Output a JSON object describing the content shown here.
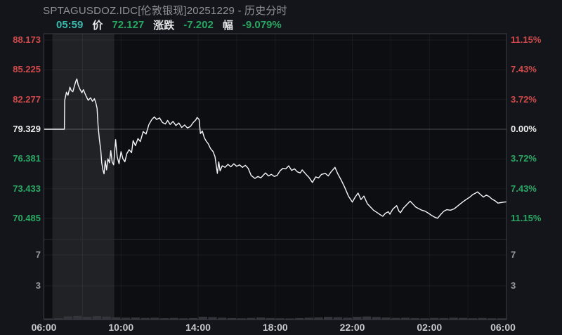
{
  "header": {
    "title": "SPTAGUSDOZ.IDC[伦敦银现]20251229 - 历史分时"
  },
  "quote": {
    "time": "05:59",
    "price_label": "价",
    "price": "72.127",
    "change_label": "涨跌",
    "change": "-7.202",
    "pct_label": "幅",
    "pct": "-9.079%"
  },
  "colors": {
    "background": "#14151a",
    "plot_background": "#0d0e12",
    "highlight_band": "rgba(255,255,255,0.085)",
    "line": "#f4f5f7",
    "up_red": "#d04a4a",
    "down_green": "#2ba864",
    "neutral_white": "#eceded",
    "teal_time": "#3ab9ad"
  },
  "chart_data": {
    "type": "line",
    "title": "SPTAGUSDOZ.IDC[伦敦银现]20251229 - 历史分时",
    "x_unit": "hours_from_06:00",
    "x_range": [
      0,
      24
    ],
    "x_tick_labels": [
      "06:00",
      "10:00",
      "14:00",
      "18:00",
      "22:00",
      "02:00",
      "06:00"
    ],
    "y_left_ticks": [
      88.173,
      85.225,
      82.277,
      79.329,
      76.381,
      73.433,
      70.485
    ],
    "y_left_tick_labels": [
      "88.173",
      "85.225",
      "82.277",
      "79.329",
      "76.381",
      "73.433",
      "70.485"
    ],
    "y_right_tick_labels": [
      "11.15%",
      "7.43%",
      "3.72%",
      "0.00%",
      "3.72%",
      "7.43%",
      "11.15%"
    ],
    "volume_tick_labels": [
      "7",
      "3"
    ],
    "base_price": 79.329,
    "last_price": 72.127,
    "grid": true,
    "highlight_band_hours": [
      0.44,
      3.65
    ],
    "series": [
      {
        "name": "price",
        "points": [
          [
            0,
            79.329
          ],
          [
            0.55,
            79.329
          ],
          [
            1.06,
            79.329
          ],
          [
            1.08,
            82.2
          ],
          [
            1.17,
            83
          ],
          [
            1.25,
            82.7
          ],
          [
            1.35,
            83.5
          ],
          [
            1.42,
            83.15
          ],
          [
            1.5,
            83.05
          ],
          [
            1.58,
            83.6
          ],
          [
            1.65,
            84.05
          ],
          [
            1.71,
            84.32
          ],
          [
            1.78,
            83.7
          ],
          [
            1.87,
            83.3
          ],
          [
            1.97,
            82.95
          ],
          [
            2.05,
            83.25
          ],
          [
            2.19,
            82.6
          ],
          [
            2.3,
            82.2
          ],
          [
            2.42,
            82.45
          ],
          [
            2.52,
            82.1
          ],
          [
            2.62,
            82.35
          ],
          [
            2.7,
            81.9
          ],
          [
            2.76,
            81.4
          ],
          [
            2.81,
            79.7
          ],
          [
            2.88,
            78.3
          ],
          [
            2.95,
            77.3
          ],
          [
            3,
            76
          ],
          [
            3.06,
            75.3
          ],
          [
            3.12,
            74.9
          ],
          [
            3.18,
            76.2
          ],
          [
            3.25,
            75.3
          ],
          [
            3.32,
            76.4
          ],
          [
            3.4,
            76
          ],
          [
            3.47,
            77.2
          ],
          [
            3.54,
            76.1
          ],
          [
            3.62,
            75.8
          ],
          [
            3.72,
            78.3
          ],
          [
            3.8,
            76.6
          ],
          [
            3.9,
            75.9
          ],
          [
            4,
            77.1
          ],
          [
            4.1,
            76.4
          ],
          [
            4.2,
            76.1
          ],
          [
            4.3,
            76.9
          ],
          [
            4.42,
            77.3
          ],
          [
            4.55,
            77
          ],
          [
            4.63,
            78.2
          ],
          [
            4.75,
            77.7
          ],
          [
            4.88,
            78.4
          ],
          [
            5,
            78.1
          ],
          [
            5.15,
            79.1
          ],
          [
            5.3,
            78.85
          ],
          [
            5.45,
            79.8
          ],
          [
            5.6,
            80.3
          ],
          [
            5.73,
            80.55
          ],
          [
            5.85,
            80.3
          ],
          [
            6,
            80.45
          ],
          [
            6.15,
            80
          ],
          [
            6.3,
            79.85
          ],
          [
            6.42,
            80.2
          ],
          [
            6.55,
            79.8
          ],
          [
            6.7,
            80.1
          ],
          [
            6.85,
            79.7
          ],
          [
            7,
            79.95
          ],
          [
            7.15,
            79.5
          ],
          [
            7.3,
            79.75
          ],
          [
            7.45,
            79.45
          ],
          [
            7.6,
            79.6
          ],
          [
            7.75,
            80
          ],
          [
            7.88,
            80.25
          ],
          [
            7.95,
            80.5
          ],
          [
            8.05,
            80.3
          ],
          [
            8.12,
            78.9
          ],
          [
            8.22,
            79.15
          ],
          [
            8.32,
            78.5
          ],
          [
            8.42,
            78.15
          ],
          [
            8.52,
            77.9
          ],
          [
            8.65,
            77.4
          ],
          [
            8.78,
            77.1
          ],
          [
            8.88,
            76.6
          ],
          [
            9,
            74.95
          ],
          [
            9.07,
            76.1
          ],
          [
            9.14,
            75.2
          ],
          [
            9.25,
            75.7
          ],
          [
            9.4,
            75.55
          ],
          [
            9.55,
            75.85
          ],
          [
            9.7,
            75.6
          ],
          [
            9.85,
            75.9
          ],
          [
            10,
            75.65
          ],
          [
            10.15,
            75.8
          ],
          [
            10.3,
            75.55
          ],
          [
            10.45,
            75.75
          ],
          [
            10.6,
            75.45
          ],
          [
            10.75,
            74.75
          ],
          [
            10.95,
            74.45
          ],
          [
            11.1,
            74.65
          ],
          [
            11.25,
            74.5
          ],
          [
            11.4,
            74.8
          ],
          [
            11.5,
            75
          ],
          [
            11.65,
            74.7
          ],
          [
            11.8,
            74.85
          ],
          [
            11.95,
            74.65
          ],
          [
            12.1,
            74.75
          ],
          [
            12.25,
            75.2
          ],
          [
            12.4,
            75.45
          ],
          [
            12.55,
            75.4
          ],
          [
            12.7,
            75.7
          ],
          [
            12.85,
            75.25
          ],
          [
            13,
            75.4
          ],
          [
            13.15,
            75.1
          ],
          [
            13.3,
            75
          ],
          [
            13.4,
            75.3
          ],
          [
            13.6,
            74.85
          ],
          [
            13.75,
            74.55
          ],
          [
            13.93,
            74.05
          ],
          [
            14.1,
            74.6
          ],
          [
            14.25,
            74.5
          ],
          [
            14.4,
            74.85
          ],
          [
            14.6,
            74.95
          ],
          [
            14.75,
            74.7
          ],
          [
            14.9,
            75.1
          ],
          [
            15.1,
            75.55
          ],
          [
            15.25,
            74.9
          ],
          [
            15.42,
            74.3
          ],
          [
            15.6,
            73.6
          ],
          [
            15.8,
            72.7
          ],
          [
            16,
            72.1
          ],
          [
            16.15,
            72.6
          ],
          [
            16.3,
            73
          ],
          [
            16.45,
            72.35
          ],
          [
            16.6,
            72.7
          ],
          [
            16.78,
            71.95
          ],
          [
            16.95,
            71.6
          ],
          [
            17.1,
            71.3
          ],
          [
            17.3,
            71.05
          ],
          [
            17.45,
            70.85
          ],
          [
            17.58,
            70.7
          ],
          [
            17.72,
            71
          ],
          [
            17.87,
            71.15
          ],
          [
            17.95,
            70.9
          ],
          [
            18.1,
            71.4
          ],
          [
            18.3,
            71.75
          ],
          [
            18.42,
            71.2
          ],
          [
            18.5,
            71.05
          ],
          [
            18.65,
            71.5
          ],
          [
            18.8,
            71.8
          ],
          [
            19,
            72.2
          ],
          [
            19.15,
            71.9
          ],
          [
            19.3,
            71.6
          ],
          [
            19.45,
            71.45
          ],
          [
            19.6,
            71.3
          ],
          [
            19.78,
            71.2
          ],
          [
            19.95,
            71
          ],
          [
            20.1,
            70.8
          ],
          [
            20.28,
            70.6
          ],
          [
            20.42,
            70.5
          ],
          [
            20.6,
            70.9
          ],
          [
            20.75,
            71.2
          ],
          [
            20.9,
            71.35
          ],
          [
            21.1,
            71.3
          ],
          [
            21.3,
            71.45
          ],
          [
            21.55,
            71.85
          ],
          [
            21.75,
            72.15
          ],
          [
            21.9,
            72.35
          ],
          [
            22.1,
            72.6
          ],
          [
            22.25,
            72.85
          ],
          [
            22.4,
            73
          ],
          [
            22.5,
            73.12
          ],
          [
            22.65,
            72.85
          ],
          [
            22.8,
            72.6
          ],
          [
            22.95,
            72.8
          ],
          [
            23.1,
            72.65
          ],
          [
            23.25,
            72.4
          ],
          [
            23.4,
            72.25
          ],
          [
            23.55,
            72
          ],
          [
            23.7,
            72.05
          ],
          [
            23.85,
            72.1
          ],
          [
            24,
            72.127
          ]
        ]
      }
    ],
    "volume": [
      0.12,
      0.15,
      0.35,
      0.4,
      0.3,
      0.38,
      0.32,
      0.25,
      0.2,
      0.22,
      0.18,
      0.2,
      0.15,
      0.18,
      0.14,
      0.16,
      0.3,
      0.26,
      0.2,
      0.16,
      0.14,
      0.18,
      0.22,
      0.16,
      0.14,
      0.12,
      0.16,
      0.2,
      0.24,
      0.3,
      0.26,
      0.2,
      0.3,
      0.34,
      0.28,
      0.22,
      0.18,
      0.2,
      0.16,
      0.14,
      0.18,
      0.16,
      0.2,
      0.18,
      0.15,
      0.17,
      0.14,
      0.13
    ]
  }
}
